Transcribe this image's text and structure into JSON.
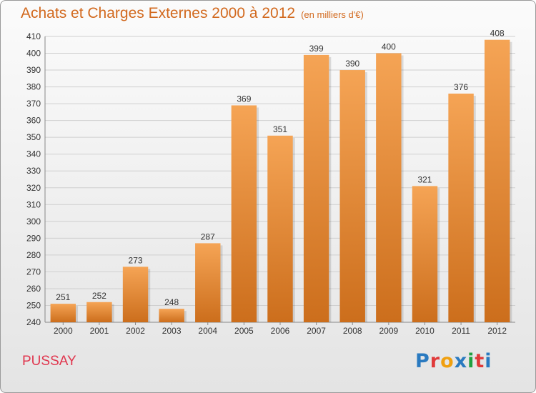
{
  "header": {
    "title": "Achats et Charges Externes 2000 à 2012",
    "subtitle": "(en milliers d'€)"
  },
  "footer": {
    "place": "PUSSAY",
    "logo": {
      "text": "Proxiti",
      "letter_colors": [
        "#2a7ac0",
        "#e03a3a",
        "#f0a010",
        "#2a7ac0",
        "#20a040",
        "#e03a3a",
        "#2a7ac0"
      ]
    }
  },
  "colors": {
    "bar_top": "#f5a455",
    "bar_bottom": "#cc6e1c",
    "title": "#d2691e",
    "place": "#e0364e",
    "grid": "#cfcfcf"
  },
  "chart_data": {
    "type": "bar",
    "title": "Achats et Charges Externes 2000 à 2012",
    "subtitle": "(en milliers d'€)",
    "categories": [
      "2000",
      "2001",
      "2002",
      "2003",
      "2004",
      "2005",
      "2006",
      "2007",
      "2008",
      "2009",
      "2010",
      "2011",
      "2012"
    ],
    "values": [
      251,
      252,
      273,
      248,
      287,
      369,
      351,
      399,
      390,
      400,
      321,
      376,
      408
    ],
    "ylim": [
      240,
      410
    ],
    "yticks": [
      240,
      250,
      260,
      270,
      280,
      290,
      300,
      310,
      320,
      330,
      340,
      350,
      360,
      370,
      380,
      390,
      400,
      410
    ],
    "grid": true,
    "data_labels": true
  }
}
